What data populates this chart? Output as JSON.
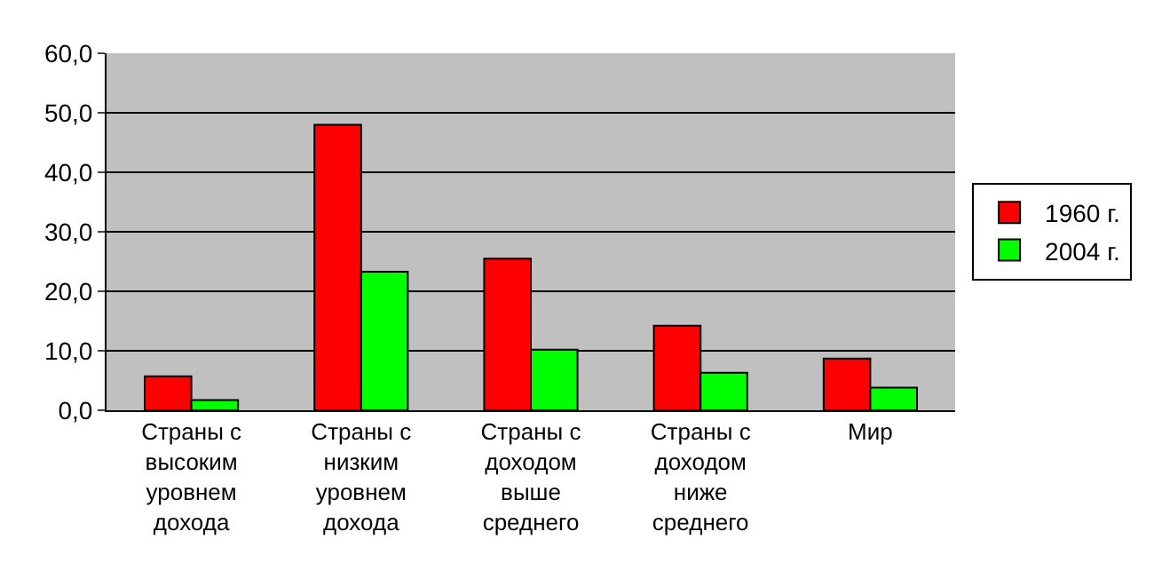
{
  "chart_data": {
    "type": "bar",
    "categories": [
      "Страны с\nвысоким\nуровнем\nдохода",
      "Страны с\nнизким\nуровнем\nдохода",
      "Страны с\nдоходом\nвыше\nсреднего",
      "Страны с\nдоходом\nниже\nсреднего",
      "Мир"
    ],
    "series": [
      {
        "name": "1960 г.",
        "color": "#ff0000",
        "values": [
          5.7,
          48.0,
          25.5,
          14.2,
          8.7
        ]
      },
      {
        "name": "2004 г.",
        "color": "#00ff00",
        "values": [
          1.7,
          23.3,
          10.2,
          6.3,
          3.8
        ]
      }
    ],
    "ylim": [
      0,
      60
    ],
    "yticks": [
      {
        "value": 0,
        "label": "0,0"
      },
      {
        "value": 10,
        "label": "10,0"
      },
      {
        "value": 20,
        "label": "20,0"
      },
      {
        "value": 30,
        "label": "30,0"
      },
      {
        "value": 40,
        "label": "40,0"
      },
      {
        "value": 50,
        "label": "50,0"
      },
      {
        "value": 60,
        "label": "60,0"
      }
    ],
    "grid": "y",
    "legend": "right"
  }
}
